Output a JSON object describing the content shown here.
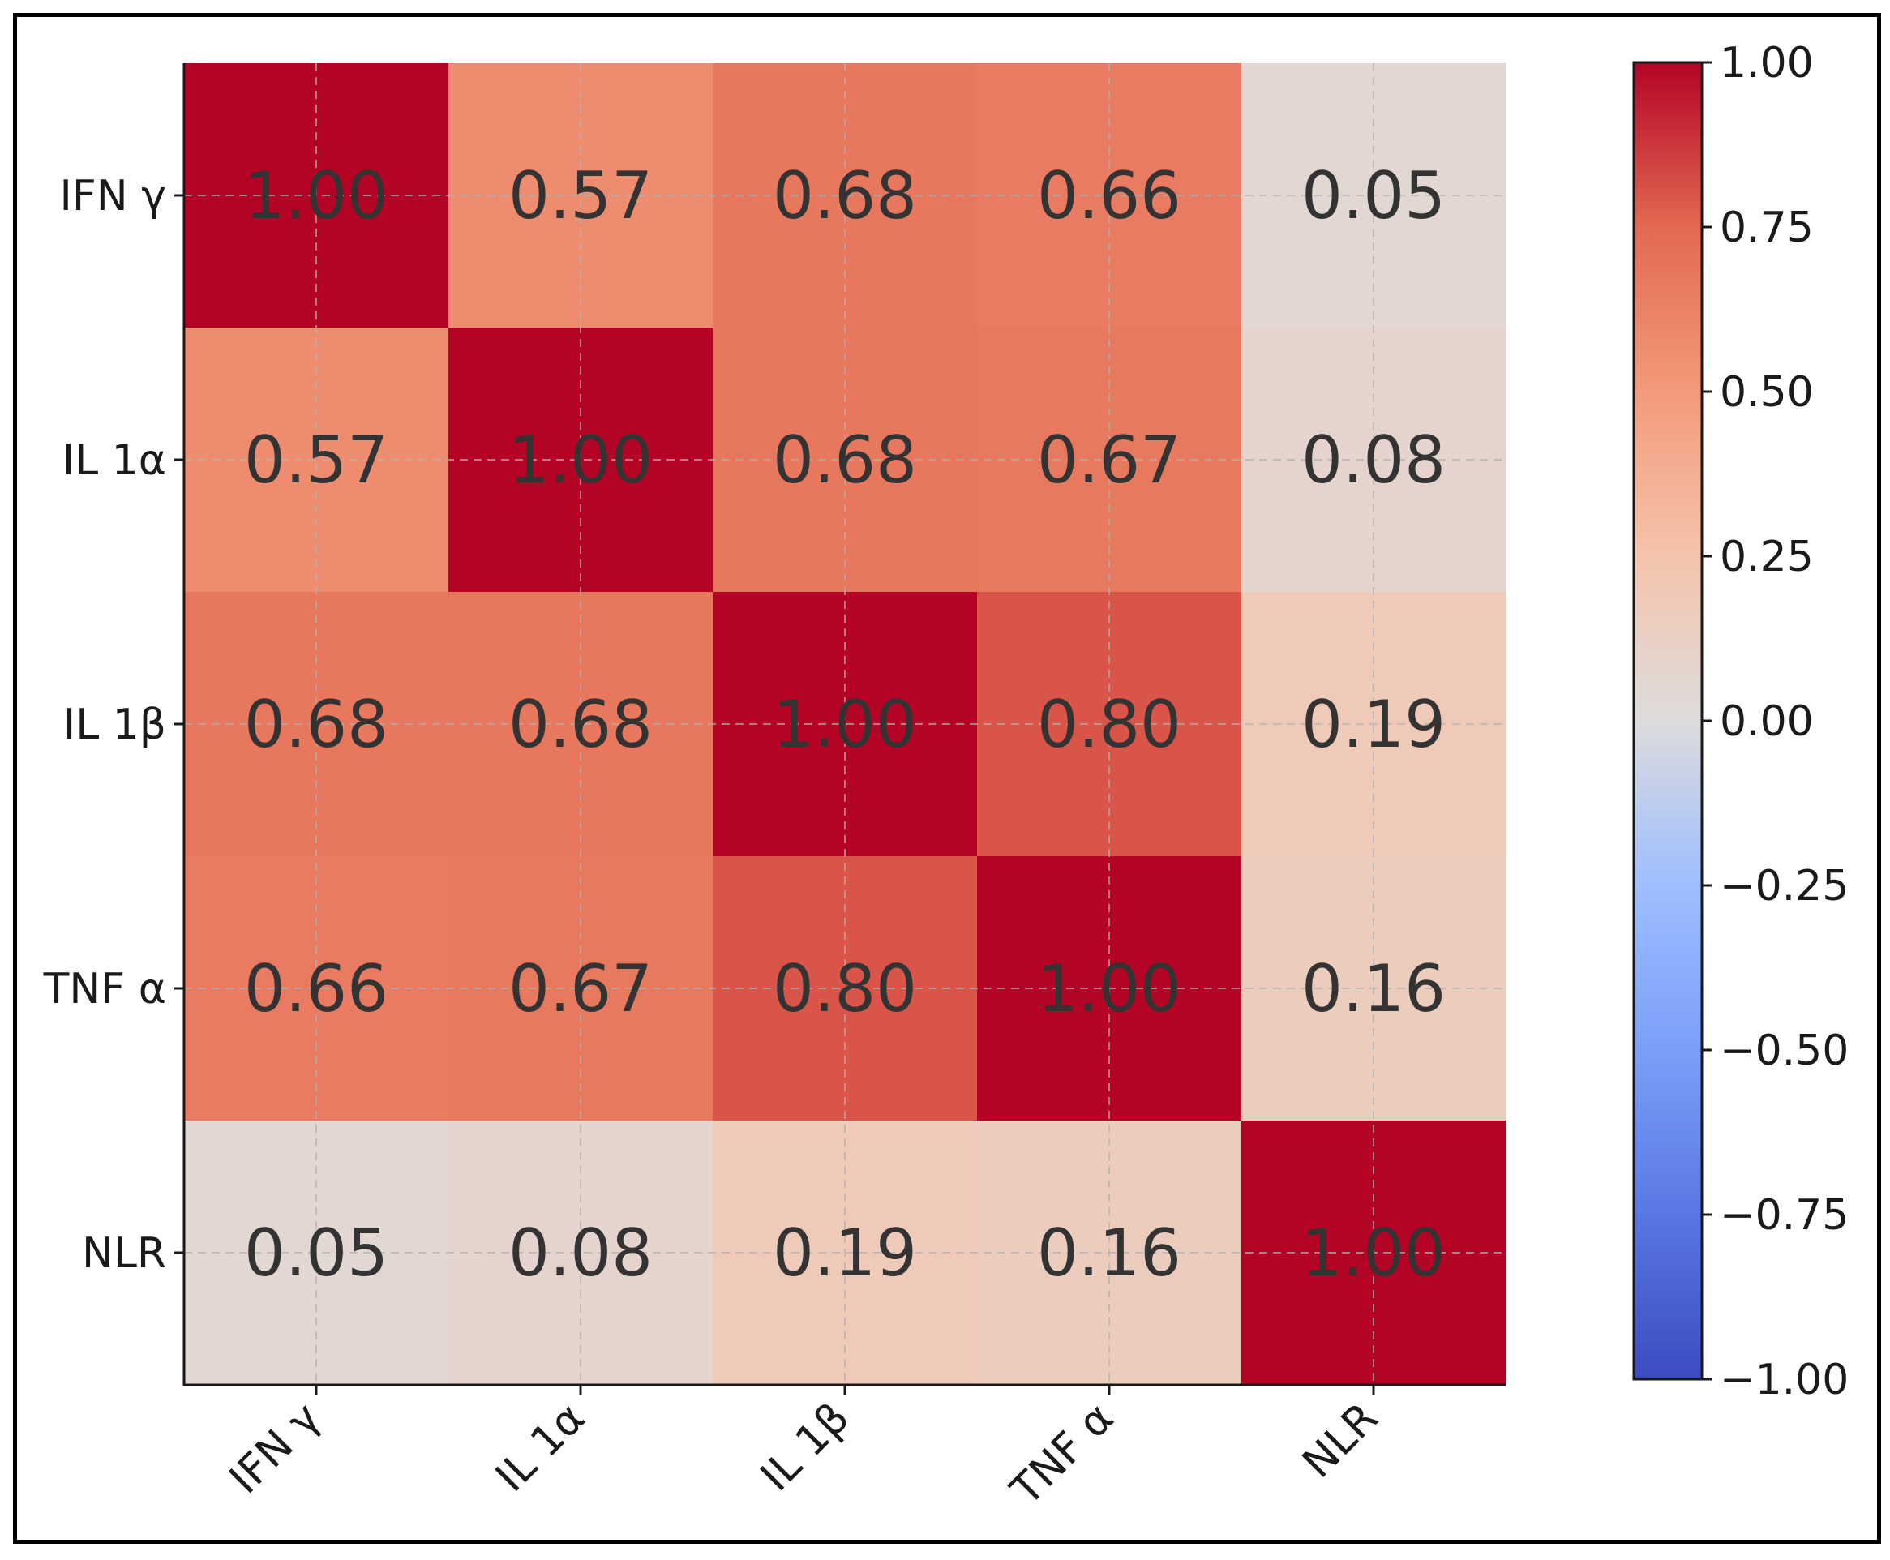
{
  "chart_data": {
    "type": "heatmap",
    "title": "",
    "row_labels": [
      "IFN γ",
      "IL 1α",
      "IL 1β",
      "TNF α",
      "NLR"
    ],
    "col_labels": [
      "IFN γ",
      "IL 1α",
      "IL 1β",
      "TNF α",
      "NLR"
    ],
    "values": [
      [
        1.0,
        0.57,
        0.68,
        0.66,
        0.05
      ],
      [
        0.57,
        1.0,
        0.68,
        0.67,
        0.08
      ],
      [
        0.68,
        0.68,
        1.0,
        0.8,
        0.19
      ],
      [
        0.66,
        0.67,
        0.8,
        1.0,
        0.16
      ],
      [
        0.05,
        0.08,
        0.19,
        0.16,
        1.0
      ]
    ],
    "value_format": "0.00",
    "colormap": "coolwarm",
    "vmin": -1.0,
    "vmax": 1.0,
    "grid": true,
    "colorbar": {
      "ticks": [
        1.0,
        0.75,
        0.5,
        0.25,
        0.0,
        -0.25,
        -0.5,
        -0.75,
        -1.0
      ],
      "tick_labels": [
        "1.00",
        "0.75",
        "0.50",
        "0.25",
        "0.00",
        "−0.25",
        "−0.50",
        "−0.75",
        "−1.00"
      ]
    },
    "colors": {
      "low": "#3b4cc0",
      "mid": "#dddcdc",
      "high": "#b40426",
      "cell_text": "#333333",
      "axis": "#1a1a1a",
      "grid": "#b0b0b0"
    }
  }
}
